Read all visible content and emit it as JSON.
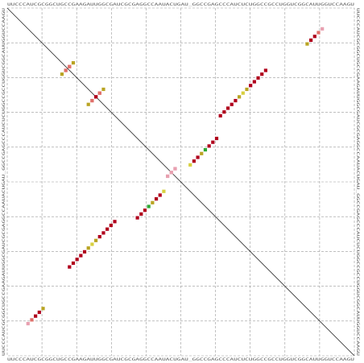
{
  "sequence": "UUCCCAUCGCGGCUGCCGAAGAUUGGCGAUCGCGAGGCCAAUACUGAU_GGCCGAGCCCAUCUCUGGCCGCCUGGUCGGCAUUGGUCCAAGU",
  "grid_divisions": 10,
  "colors": {
    "dark_red": "#b0001c",
    "red": "#cc1d26",
    "salmon": "#e0706a",
    "pink": "#e8a0b0",
    "olive": "#b9a423",
    "yellow": "#d8d040",
    "green": "#2ea832"
  },
  "chart_data": {
    "type": "heatmap",
    "description_of_axes": "sequence positions (0-based) on both axes; upper-right triangle and lower-left triangle show base-pair probability dots",
    "pairs": [
      {
        "i": 5,
        "j": 83,
        "c": "pink"
      },
      {
        "i": 6,
        "j": 82,
        "c": "salmon"
      },
      {
        "i": 7,
        "j": 81,
        "c": "dark_red"
      },
      {
        "i": 8,
        "j": 80,
        "c": "dark_red"
      },
      {
        "i": 9,
        "j": 79,
        "c": "olive"
      },
      {
        "i": 16,
        "j": 68,
        "c": "dark_red"
      },
      {
        "i": 17,
        "j": 67,
        "c": "dark_red"
      },
      {
        "i": 18,
        "j": 66,
        "c": "dark_red"
      },
      {
        "i": 19,
        "j": 65,
        "c": "dark_red"
      },
      {
        "i": 20,
        "j": 64,
        "c": "dark_red"
      },
      {
        "i": 21,
        "j": 63,
        "c": "olive"
      },
      {
        "i": 22,
        "j": 62,
        "c": "yellow"
      },
      {
        "i": 23,
        "j": 61,
        "c": "olive"
      },
      {
        "i": 24,
        "j": 60,
        "c": "dark_red"
      },
      {
        "i": 25,
        "j": 59,
        "c": "dark_red"
      },
      {
        "i": 26,
        "j": 58,
        "c": "dark_red"
      },
      {
        "i": 27,
        "j": 57,
        "c": "dark_red"
      },
      {
        "i": 28,
        "j": 56,
        "c": "dark_red"
      },
      {
        "i": 21,
        "j": 25,
        "c": "olive"
      },
      {
        "i": 22,
        "j": 24,
        "c": "salmon"
      },
      {
        "i": 23,
        "j": 23,
        "c": "dark_red"
      },
      {
        "i": 24,
        "j": 22,
        "c": "salmon"
      },
      {
        "i": 14,
        "j": 17,
        "c": "olive"
      },
      {
        "i": 15,
        "j": 16,
        "c": "salmon"
      },
      {
        "i": 16,
        "j": 15,
        "c": "salmon"
      },
      {
        "i": 34,
        "j": 55,
        "c": "dark_red"
      },
      {
        "i": 35,
        "j": 54,
        "c": "dark_red"
      },
      {
        "i": 36,
        "j": 53,
        "c": "dark_red"
      },
      {
        "i": 37,
        "j": 52,
        "c": "green"
      },
      {
        "i": 38,
        "j": 51,
        "c": "olive"
      },
      {
        "i": 39,
        "j": 50,
        "c": "dark_red"
      },
      {
        "i": 40,
        "j": 49,
        "c": "dark_red"
      },
      {
        "i": 41,
        "j": 48,
        "c": "yellow"
      },
      {
        "i": 42,
        "j": 44,
        "c": "pink"
      },
      {
        "i": 43,
        "j": 43,
        "c": "pink"
      },
      {
        "i": 44,
        "j": 42,
        "c": "pink"
      }
    ]
  }
}
